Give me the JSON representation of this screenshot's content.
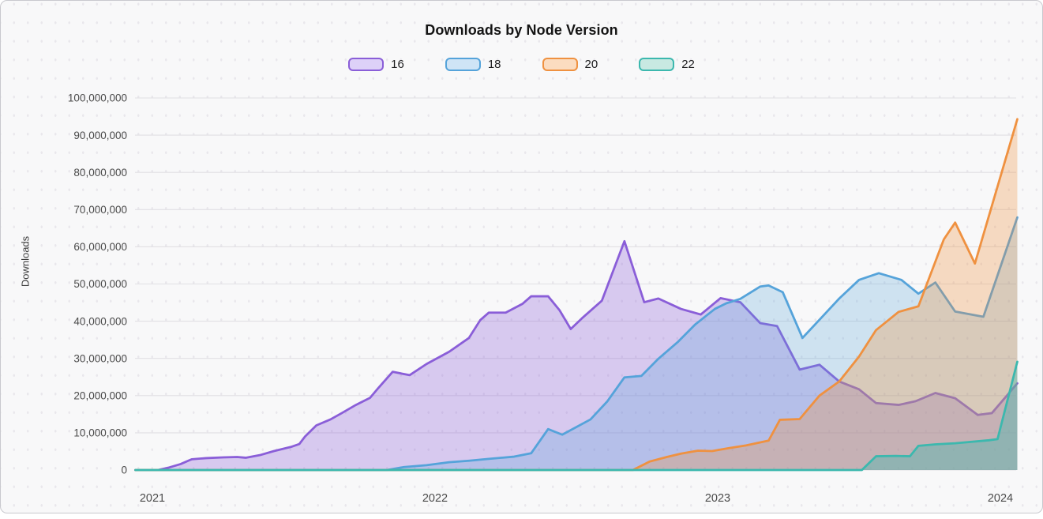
{
  "title": "Downloads by Node Version",
  "y_axis": {
    "label": "Downloads",
    "tick_labels": [
      "0",
      "10,000,000",
      "20,000,000",
      "30,000,000",
      "40,000,000",
      "50,000,000",
      "60,000,000",
      "70,000,000",
      "80,000,000",
      "90,000,000",
      "100,000,000"
    ]
  },
  "x_axis": {
    "tick_labels": [
      "2021",
      "2022",
      "2023",
      "2024"
    ]
  },
  "legend": [
    {
      "label": "16",
      "stroke": "#8a5ed8",
      "fill": "#ddd1f8"
    },
    {
      "label": "18",
      "stroke": "#55a3da",
      "fill": "#cfe4f6"
    },
    {
      "label": "20",
      "stroke": "#ef9140",
      "fill": "#fbdcc0"
    },
    {
      "label": "22",
      "stroke": "#3cb8ae",
      "fill": "#c8e9e2"
    }
  ],
  "colors": {
    "gridline": "#e1e0e4",
    "tick_text": "#4b4b4b",
    "card_border": "#c9c9ce",
    "background": "#f8f8f9"
  },
  "chart_data": {
    "type": "area",
    "title": "Downloads by Node Version",
    "xlabel": "",
    "ylabel": "Downloads",
    "x_unit": "decimal_year",
    "y_unit": "downloads_millions",
    "xlim": [
      2020.94,
      2024.06
    ],
    "ylim": [
      0,
      100
    ],
    "grid": "horizontal",
    "legend_position": "top",
    "x_ticks": [
      2021,
      2022,
      2023,
      2024
    ],
    "y_tick_step_millions": 10,
    "series": [
      {
        "name": "16",
        "color": "#8a5ed8",
        "fill_alpha": 0.3,
        "points": [
          [
            2020.94,
            0
          ],
          [
            2021.02,
            0
          ],
          [
            2021.06,
            0.7
          ],
          [
            2021.1,
            1.6
          ],
          [
            2021.13,
            2.6
          ],
          [
            2021.14,
            2.9
          ],
          [
            2021.19,
            3.2
          ],
          [
            2021.25,
            3.4
          ],
          [
            2021.3,
            3.5
          ],
          [
            2021.33,
            3.3
          ],
          [
            2021.38,
            4.0
          ],
          [
            2021.43,
            5.1
          ],
          [
            2021.49,
            6.2
          ],
          [
            2021.52,
            7.0
          ],
          [
            2021.54,
            9.0
          ],
          [
            2021.58,
            12.0
          ],
          [
            2021.63,
            13.6
          ],
          [
            2021.67,
            15.3
          ],
          [
            2021.72,
            17.5
          ],
          [
            2021.77,
            19.4
          ],
          [
            2021.8,
            22.1
          ],
          [
            2021.85,
            26.4
          ],
          [
            2021.91,
            25.5
          ],
          [
            2021.97,
            28.5
          ],
          [
            2022.05,
            31.8
          ],
          [
            2022.12,
            35.5
          ],
          [
            2022.16,
            40.3
          ],
          [
            2022.19,
            42.3
          ],
          [
            2022.25,
            42.3
          ],
          [
            2022.31,
            44.7
          ],
          [
            2022.34,
            46.7
          ],
          [
            2022.4,
            46.7
          ],
          [
            2022.44,
            43.0
          ],
          [
            2022.48,
            37.9
          ],
          [
            2022.52,
            40.8
          ],
          [
            2022.59,
            45.5
          ],
          [
            2022.67,
            61.5
          ],
          [
            2022.74,
            45.1
          ],
          [
            2022.79,
            46.1
          ],
          [
            2022.87,
            43.3
          ],
          [
            2022.94,
            41.8
          ],
          [
            2023.01,
            46.2
          ],
          [
            2023.08,
            45.1
          ],
          [
            2023.15,
            39.5
          ],
          [
            2023.21,
            38.7
          ],
          [
            2023.29,
            27.0
          ],
          [
            2023.36,
            28.3
          ],
          [
            2023.43,
            23.8
          ],
          [
            2023.5,
            21.7
          ],
          [
            2023.56,
            18.0
          ],
          [
            2023.64,
            17.5
          ],
          [
            2023.7,
            18.5
          ],
          [
            2023.77,
            20.7
          ],
          [
            2023.84,
            19.3
          ],
          [
            2023.92,
            14.8
          ],
          [
            2023.97,
            15.3
          ],
          [
            2024.06,
            23.3
          ]
        ]
      },
      {
        "name": "18",
        "color": "#55a3da",
        "fill_alpha": 0.26,
        "points": [
          [
            2020.94,
            0
          ],
          [
            2021.83,
            0
          ],
          [
            2021.89,
            0.8
          ],
          [
            2021.97,
            1.3
          ],
          [
            2022.05,
            2.1
          ],
          [
            2022.12,
            2.5
          ],
          [
            2022.19,
            3.0
          ],
          [
            2022.28,
            3.6
          ],
          [
            2022.34,
            4.5
          ],
          [
            2022.4,
            11.0
          ],
          [
            2022.45,
            9.5
          ],
          [
            2022.55,
            13.6
          ],
          [
            2022.61,
            18.5
          ],
          [
            2022.67,
            24.9
          ],
          [
            2022.73,
            25.3
          ],
          [
            2022.79,
            29.9
          ],
          [
            2022.86,
            34.5
          ],
          [
            2022.92,
            39.1
          ],
          [
            2022.99,
            43.3
          ],
          [
            2023.03,
            44.8
          ],
          [
            2023.08,
            46.0
          ],
          [
            2023.15,
            49.3
          ],
          [
            2023.18,
            49.6
          ],
          [
            2023.23,
            47.8
          ],
          [
            2023.3,
            35.5
          ],
          [
            2023.37,
            41.2
          ],
          [
            2023.43,
            46.1
          ],
          [
            2023.5,
            51.1
          ],
          [
            2023.57,
            52.9
          ],
          [
            2023.65,
            51.1
          ],
          [
            2023.71,
            47.4
          ],
          [
            2023.77,
            50.4
          ],
          [
            2023.84,
            42.6
          ],
          [
            2023.94,
            41.2
          ],
          [
            2024.06,
            67.9
          ]
        ]
      },
      {
        "name": "20",
        "color": "#ef9140",
        "fill_alpha": 0.3,
        "points": [
          [
            2020.94,
            0
          ],
          [
            2022.7,
            0
          ],
          [
            2022.76,
            2.3
          ],
          [
            2022.82,
            3.5
          ],
          [
            2022.87,
            4.4
          ],
          [
            2022.93,
            5.2
          ],
          [
            2022.98,
            5.1
          ],
          [
            2023.04,
            5.9
          ],
          [
            2023.1,
            6.6
          ],
          [
            2023.18,
            7.9
          ],
          [
            2023.22,
            13.5
          ],
          [
            2023.29,
            13.7
          ],
          [
            2023.36,
            20.0
          ],
          [
            2023.43,
            23.8
          ],
          [
            2023.5,
            30.5
          ],
          [
            2023.56,
            37.6
          ],
          [
            2023.64,
            42.5
          ],
          [
            2023.71,
            44.0
          ],
          [
            2023.8,
            62.0
          ],
          [
            2023.84,
            66.5
          ],
          [
            2023.91,
            55.5
          ],
          [
            2024.06,
            94.3
          ]
        ]
      },
      {
        "name": "22",
        "color": "#3cb8ae",
        "fill_alpha": 0.38,
        "points": [
          [
            2020.94,
            0
          ],
          [
            2023.51,
            0
          ],
          [
            2023.56,
            3.7
          ],
          [
            2023.63,
            3.8
          ],
          [
            2023.68,
            3.7
          ],
          [
            2023.71,
            6.5
          ],
          [
            2023.77,
            6.9
          ],
          [
            2023.84,
            7.2
          ],
          [
            2023.96,
            8.0
          ],
          [
            2023.99,
            8.3
          ],
          [
            2024.06,
            29.1
          ]
        ]
      }
    ]
  }
}
